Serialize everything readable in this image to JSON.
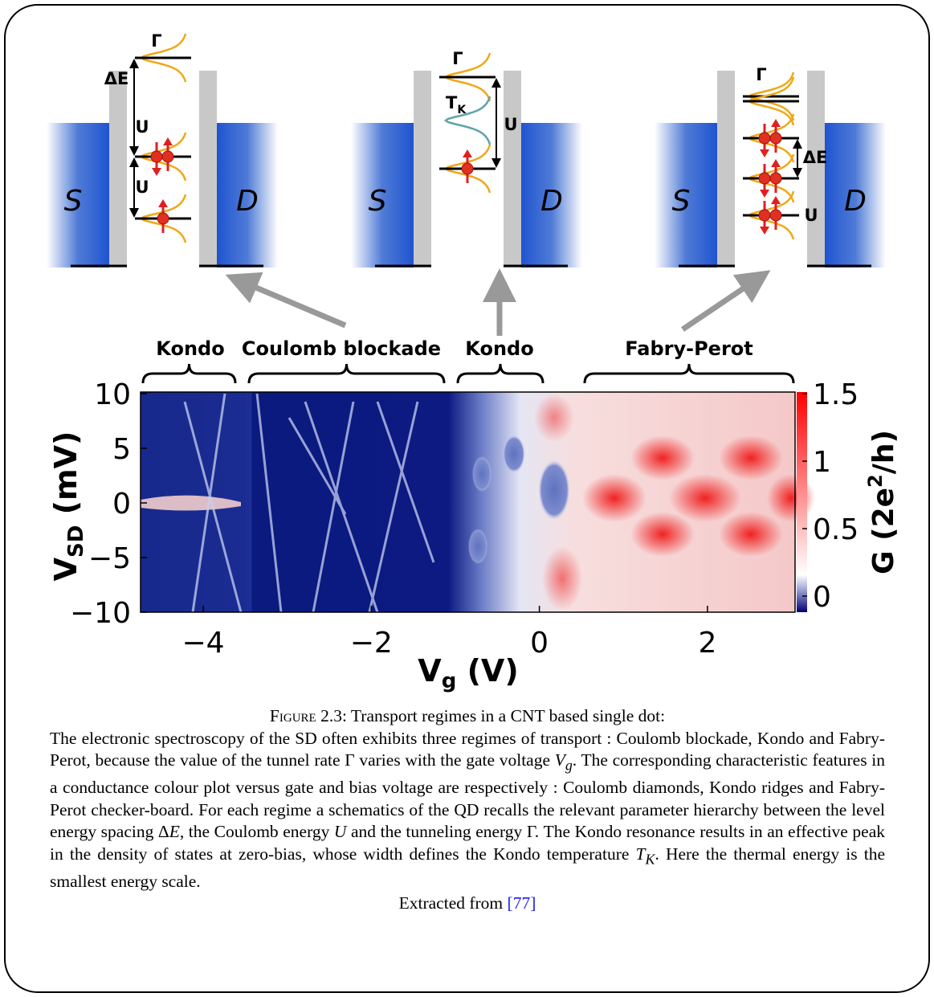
{
  "figure": {
    "schematics": [
      {
        "source": "S",
        "drain": "D",
        "labels": [
          "Γ",
          "ΔE",
          "U",
          "U"
        ]
      },
      {
        "source": "S",
        "drain": "D",
        "labels": [
          "Γ",
          "U"
        ],
        "kondo_temperature": {
          "symbol": "T",
          "subscript": "K"
        }
      },
      {
        "source": "S",
        "drain": "D",
        "labels": [
          "Γ",
          "ΔE",
          "U"
        ]
      }
    ],
    "regimes": [
      "Kondo",
      "Coulomb blockade",
      "Kondo",
      "Fabry-Perot"
    ],
    "x_label": {
      "symbol": "V",
      "subscript": "g",
      "unit": "(V)"
    },
    "y_label": {
      "symbol": "V",
      "subscript": "SD",
      "unit": "(mV)"
    },
    "colorbar_label": {
      "text": "G (2e",
      "superscript": "2",
      "rest": "/h)"
    },
    "x_ticks": [
      "−4",
      "−2",
      "0",
      "2"
    ],
    "y_ticks": [
      "10",
      "5",
      "0",
      "−5",
      "−10"
    ],
    "colorbar_ticks": [
      "1.5",
      "1",
      "0.5",
      "0"
    ]
  },
  "caption": {
    "label": "Figure 2.3:",
    "title": "Transport regimes in a CNT based single dot:",
    "body": [
      "The electronic spectroscopy of the SD often exhibits three regimes of transport : Coulomb blockade, Kondo and Fabry-Perot, because the value of the tunnel rate Γ varies with the gate voltage ",
      ". The corresponding characteristic features in a conductance colour plot versus gate and bias voltage are respectively : Coulomb diamonds, Kondo ridges and Fabry-Perot checker-board. For each regime a schematics of the QD recalls the relevant parameter hierarchy between the level energy spacing Δ",
      ", the Coulomb energy ",
      " and the tunneling energy Γ. The Kondo resonance results in an effective peak in the density of states at zero-bias, whose width defines the Kondo temperature ",
      ". Here the thermal energy is the smallest energy scale."
    ],
    "math": {
      "gate": {
        "symbol": "V",
        "subscript": "g"
      },
      "spacing": "E",
      "coulomb": "U",
      "kondo": {
        "symbol": "T",
        "subscript": "K"
      }
    },
    "source_text": "Extracted from",
    "reference": "[77]"
  }
}
